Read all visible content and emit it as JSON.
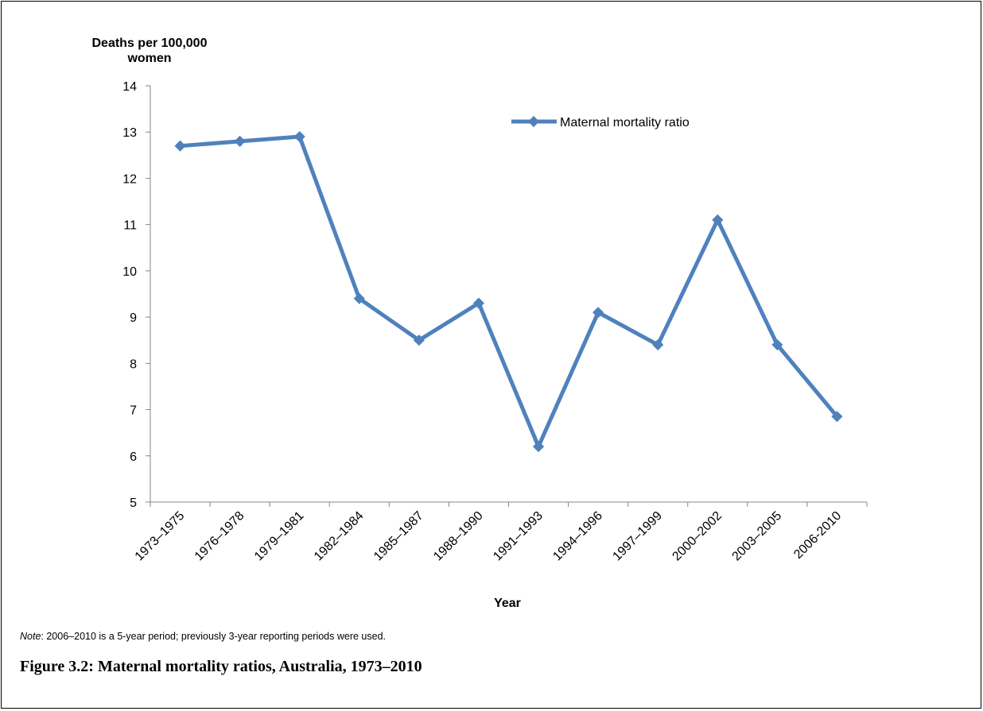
{
  "figure": {
    "caption": "Figure 3.2: Maternal mortality ratios, Australia, 1973–2010",
    "note_label": "Note",
    "note_text": ": 2006–2010 is a 5-year period; previously 3-year reporting periods were used."
  },
  "chart_data": {
    "type": "line",
    "title": "",
    "ylabel_line1": "Deaths per 100,000",
    "ylabel_line2": "women",
    "xlabel": "Year",
    "categories": [
      "1973–1975",
      "1976–1978",
      "1979–1981",
      "1982–1984",
      "1985–1987",
      "1988–1990",
      "1991–1993",
      "1994–1996",
      "1997–1999",
      "2000–2002",
      "2003–2005",
      "2006-2010"
    ],
    "series": [
      {
        "name": "Maternal mortality ratio",
        "values": [
          12.7,
          12.8,
          12.9,
          9.4,
          8.5,
          9.3,
          6.2,
          9.1,
          8.4,
          11.1,
          8.4,
          6.85
        ]
      }
    ],
    "ylim": [
      5,
      14
    ],
    "yticks": [
      5,
      6,
      7,
      8,
      9,
      10,
      11,
      12,
      13,
      14
    ],
    "grid": false,
    "legend": "top-right",
    "color": "#4f81bd"
  }
}
